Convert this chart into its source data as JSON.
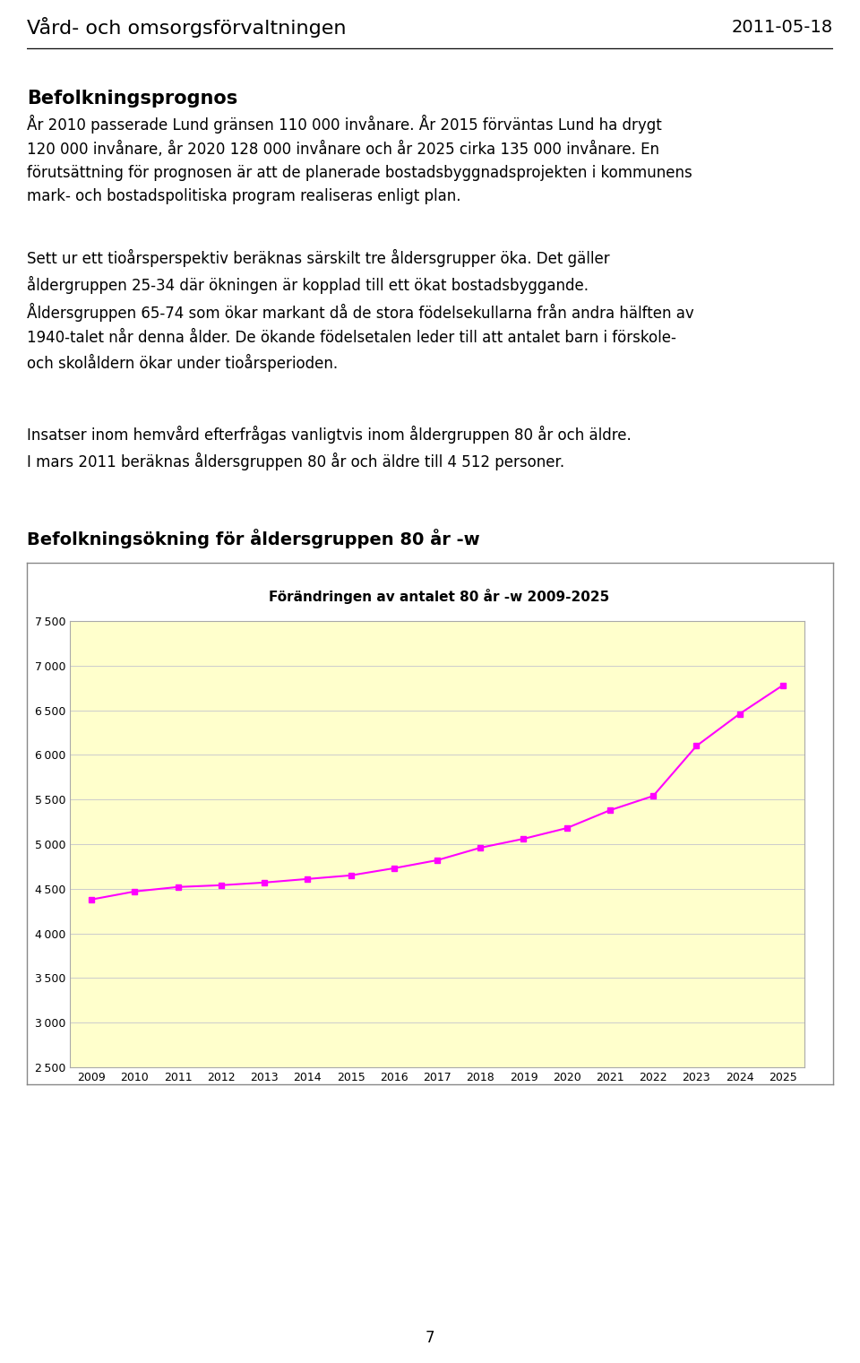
{
  "header_left": "Vård- och omsorgsförvaltningen",
  "header_right": "2011-05-18",
  "section_title": "Befolkningsprognos",
  "para1": "År 2010 passerade Lund gränsen 110 000 invånare. År 2015 förväntas Lund ha drygt\n120 000 invånare, år 2020 128 000 invånare och år 2025 cirka 135 000 invånare. En\nförutsättning för prognosen är att de planerade bostadsbyggnadsprojekten i kommunens\nmark- och bostadspolitiska program realiseras enligt plan.",
  "para2": "Sett ur ett tioårsperspektiv beräknas särskilt tre åldersgrupper öka. Det gäller\nåldergruppen 25-34 där ökningen är kopplad till ett ökat bostadsbyggande.\nÅldersgruppen 65-74 som ökar markant då de stora födelsekullarna från andra hälften av\n1940-talet når denna ålder. De ökande födelsetalen leder till att antalet barn i förskole-\noch skolåldern ökar under tioårsperioden.",
  "para3": "Insatser inom hemvård efterfrågas vanligtvis inom åldergruppen 80 år och äldre.\nI mars 2011 beräknas åldersgruppen 80 år och äldre till 4 512 personer.",
  "chart_section_title": "Befolkningsökning för åldersgruppen 80 år -w",
  "chart_title": "Förändringen av antalet 80 år -w 2009-2025",
  "years": [
    2009,
    2010,
    2011,
    2012,
    2013,
    2014,
    2015,
    2016,
    2017,
    2018,
    2019,
    2020,
    2021,
    2022,
    2023,
    2024,
    2025
  ],
  "values": [
    4380,
    4470,
    4520,
    4540,
    4570,
    4610,
    4650,
    4730,
    4820,
    4960,
    5060,
    5180,
    5380,
    5540,
    6100,
    6460,
    6780
  ],
  "line_color": "#FF00FF",
  "marker": "s",
  "marker_size": 5,
  "chart_bg_color": "#FFFFCC",
  "chart_border_color": "#AAAAAA",
  "ylim_min": 2500,
  "ylim_max": 7500,
  "yticks": [
    2500,
    3000,
    3500,
    4000,
    4500,
    5000,
    5500,
    6000,
    6500,
    7000,
    7500
  ],
  "grid_color": "#CCCCCC",
  "page_number": "7",
  "bg_color": "#FFFFFF",
  "fig_width": 9.6,
  "fig_height": 15.21
}
